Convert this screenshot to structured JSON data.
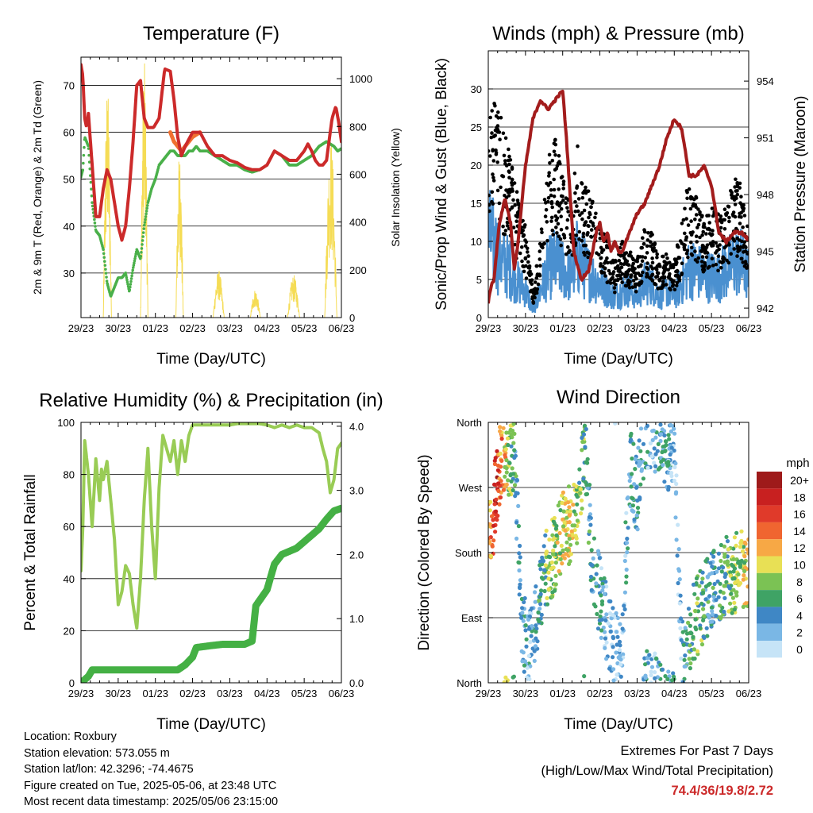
{
  "panels": {
    "temperature": {
      "title": "Temperature (F)",
      "xlabel": "Time (Day/UTC)",
      "ylabel_left": "2m & 9m T (Red, Orange) & 2m Td (Green)",
      "ylabel_right": "Solar Insolation (Yellow)"
    },
    "winds": {
      "title": "Winds (mph) & Pressure (mb)",
      "xlabel": "Time (Day/UTC)",
      "ylabel_left": "Sonic/Prop Wind & Gust (Blue, Black)",
      "ylabel_right": "Station Pressure (Maroon)"
    },
    "humidity": {
      "title": "Relative Humidity (%) & Precipitation (in)",
      "xlabel": "Time (Day/UTC)",
      "ylabel_left": "Percent & Total Rainfall"
    },
    "direction": {
      "title": "Wind Direction",
      "xlabel": "Time (Day/UTC)",
      "ylabel_left": "Direction (Colored By Speed)",
      "legend_title": "mph"
    }
  },
  "info": {
    "location": "Location: Roxbury",
    "elevation": "Station elevation: 573.055 m",
    "latlon": "Station lat/lon: 42.3296; -74.4675",
    "created": "Figure created on Tue, 2025-05-06, at 23:48 UTC",
    "recent": "Most recent data timestamp: 2025/05/06 23:15:00"
  },
  "extremes": {
    "heading": "Extremes For Past 7 Days",
    "subheading": "(High/Low/Max Wind/Total Precipitation)",
    "values": "74.4/36/19.8/2.72"
  },
  "colors": {
    "temp_2m": "#cc2a2a",
    "temp_9m": "#f07030",
    "dewpoint": "#4ab04a",
    "solar": "#f5dc55",
    "gust": "#000000",
    "wind": "#4a90d0",
    "pressure": "#a31c1c",
    "rh": "#99cc55",
    "precip": "#44b044"
  },
  "chart_data": [
    {
      "type": "line",
      "title": "Temperature (F)",
      "xlabel": "Time (Day/UTC)",
      "ylabel": "2m & 9m T (Red, Orange) & 2m Td (Green)",
      "y2label": "Solar Insolation (Yellow)",
      "x_ticks": [
        "29/23",
        "30/23",
        "01/23",
        "02/23",
        "03/23",
        "04/23",
        "05/23",
        "06/23"
      ],
      "xlim": [
        0,
        7
      ],
      "ylim": [
        20.5,
        76
      ],
      "y_ticks": [
        30,
        40,
        50,
        60,
        70
      ],
      "y2lim": [
        0,
        1090
      ],
      "y2_ticks": [
        0,
        200,
        400,
        600,
        800,
        1000
      ],
      "series": [
        {
          "name": "2m T",
          "color": "#cc2a2a",
          "x": [
            0,
            0.05,
            0.1,
            0.15,
            0.2,
            0.3,
            0.4,
            0.5,
            0.6,
            0.7,
            0.8,
            0.9,
            1.0,
            1.1,
            1.2,
            1.3,
            1.4,
            1.5,
            1.6,
            1.7,
            1.8,
            1.95,
            2.1,
            2.25,
            2.4,
            2.5,
            2.6,
            2.7,
            2.8,
            3.0,
            3.2,
            3.4,
            3.6,
            3.8,
            4.0,
            4.2,
            4.4,
            4.6,
            4.8,
            5.0,
            5.2,
            5.4,
            5.6,
            5.8,
            5.9,
            6.0,
            6.1,
            6.2,
            6.3,
            6.4,
            6.5,
            6.6,
            6.75,
            6.85,
            6.93,
            7.0
          ],
          "y": [
            74.4,
            72,
            63,
            61,
            64,
            53,
            42,
            42,
            48,
            52,
            50,
            45,
            40,
            37,
            40,
            48,
            58,
            70,
            71,
            63,
            61,
            61,
            63,
            73.5,
            73,
            67,
            59,
            55,
            57,
            60,
            60,
            57,
            55,
            55,
            54,
            53.5,
            52.5,
            52,
            52,
            53,
            56,
            55,
            54,
            54,
            55,
            56,
            57.5,
            56,
            54,
            53,
            53,
            54,
            63,
            65.5,
            62,
            58
          ]
        },
        {
          "name": "9m T",
          "color": "#f07030",
          "x": [
            2.4,
            2.5,
            2.6,
            2.7,
            2.8,
            3.0,
            3.2
          ],
          "y": [
            60,
            58,
            57,
            56,
            57,
            59,
            60
          ]
        },
        {
          "name": "2m Td",
          "color": "#4ab04a",
          "x": [
            0,
            0.05,
            0.1,
            0.2,
            0.3,
            0.4,
            0.5,
            0.6,
            0.7,
            0.8,
            1.0,
            1.1,
            1.2,
            1.3,
            1.4,
            1.5,
            1.6,
            1.7,
            1.8,
            1.9,
            2.0,
            2.1,
            2.2,
            2.3,
            2.4,
            2.5,
            2.6,
            2.7,
            2.8,
            2.9,
            3.0,
            3.1,
            3.2,
            3.3,
            3.4,
            3.6,
            3.8,
            4.0,
            4.2,
            4.4,
            4.6,
            4.8,
            5.0,
            5.2,
            5.4,
            5.6,
            5.8,
            6.0,
            6.2,
            6.4,
            6.6,
            6.8,
            6.9,
            7.0
          ],
          "y": [
            50.5,
            52,
            59,
            57,
            45,
            39,
            38,
            35,
            28,
            25,
            29,
            29,
            30,
            26,
            31,
            35,
            33,
            40,
            45,
            48,
            50,
            53,
            54,
            55,
            56,
            56,
            55,
            55,
            55,
            56,
            56,
            57,
            56,
            56,
            56,
            55,
            54,
            53,
            53,
            52,
            51.5,
            52,
            53,
            56,
            55,
            53,
            53,
            54,
            55,
            57,
            58,
            57,
            56,
            56.5
          ]
        },
        {
          "name": "Solar Insolation",
          "color": "#f5dc55",
          "axis": "y2",
          "x": [
            0.6,
            0.72,
            0.82,
            1.6,
            1.7,
            1.8,
            2.55,
            2.65,
            2.75,
            3.55,
            3.7,
            3.85,
            4.55,
            4.7,
            4.82,
            5.55,
            5.72,
            5.88,
            6.55,
            6.7,
            6.88
          ],
          "y": [
            0,
            980,
            0,
            0,
            1080,
            0,
            0,
            700,
            0,
            0,
            200,
            0,
            0,
            120,
            0,
            0,
            180,
            0,
            0,
            760,
            0
          ]
        }
      ]
    },
    {
      "type": "line",
      "title": "Winds (mph) & Pressure (mb)",
      "xlabel": "Time (Day/UTC)",
      "ylabel": "Sonic/Prop Wind & Gust (Blue, Black)",
      "y2label": "Station Pressure (Maroon)",
      "x_ticks": [
        "29/23",
        "30/23",
        "01/23",
        "02/23",
        "03/23",
        "04/23",
        "05/23",
        "06/23"
      ],
      "xlim": [
        0,
        7
      ],
      "ylim": [
        0,
        35
      ],
      "y_ticks": [
        0,
        5,
        10,
        15,
        20,
        25,
        30
      ],
      "y2lim": [
        941.5,
        955.6
      ],
      "y2_ticks": [
        942,
        945,
        948,
        951,
        954
      ],
      "series": [
        {
          "name": "Gust",
          "color": "#000000",
          "x": [
            0,
            0.2,
            0.4,
            0.6,
            0.8,
            1.0,
            1.2,
            1.4,
            1.6,
            1.8,
            2.0,
            2.2,
            2.4,
            2.6,
            2.8,
            3.0,
            3.2,
            3.4,
            3.6,
            3.8,
            4.0,
            4.2,
            4.4,
            4.6,
            4.8,
            5.0,
            5.2,
            5.4,
            5.6,
            5.8,
            6.0,
            6.2,
            6.4,
            6.6,
            6.8,
            7.0
          ],
          "y": [
            25,
            24,
            20,
            18,
            13,
            10,
            3,
            8,
            17,
            19,
            15,
            12,
            19,
            14,
            13,
            10,
            8,
            6,
            8,
            7,
            6,
            10,
            9,
            6,
            7,
            6,
            10,
            15,
            13,
            10,
            12,
            11,
            12,
            15,
            14,
            10
          ]
        },
        {
          "name": "Wind",
          "color": "#4a90d0",
          "x": [
            0,
            0.2,
            0.4,
            0.6,
            0.8,
            1.0,
            1.2,
            1.4,
            1.6,
            1.8,
            2.0,
            2.2,
            2.4,
            2.6,
            2.8,
            3.0,
            3.2,
            3.4,
            3.6,
            3.8,
            4.0,
            4.2,
            4.4,
            4.6,
            4.8,
            5.0,
            5.2,
            5.4,
            5.6,
            5.8,
            6.0,
            6.2,
            6.4,
            6.6,
            6.8,
            7.0
          ],
          "y": [
            12,
            10,
            8,
            7,
            5,
            4,
            1,
            4,
            7,
            8,
            7,
            6,
            9,
            7,
            6,
            5,
            4,
            3,
            4,
            4,
            3,
            5,
            5,
            3,
            4,
            3,
            5,
            7,
            7,
            6,
            6,
            6,
            7,
            8,
            8,
            6
          ]
        },
        {
          "name": "Station Pressure",
          "color": "#a31c1c",
          "axis": "y2",
          "x": [
            0,
            0.08,
            0.15,
            0.3,
            0.45,
            0.6,
            0.7,
            0.8,
            0.9,
            1.0,
            1.2,
            1.4,
            1.6,
            1.8,
            2.0,
            2.1,
            2.2,
            2.3,
            2.5,
            2.7,
            2.9,
            3.0,
            3.1,
            3.2,
            3.3,
            3.4,
            3.5,
            3.6,
            3.8,
            4.0,
            4.2,
            4.4,
            4.6,
            4.8,
            5.0,
            5.2,
            5.4,
            5.6,
            5.8,
            6.0,
            6.2,
            6.4,
            6.6,
            6.8,
            6.9,
            7.0
          ],
          "y": [
            942.3,
            943.2,
            943.5,
            946.5,
            947.8,
            946.5,
            944,
            945.5,
            947.5,
            949.5,
            952,
            953,
            952.5,
            953,
            953.5,
            951,
            948,
            945,
            943.5,
            944,
            946,
            946.5,
            945.5,
            946,
            945,
            945.5,
            945,
            945,
            946,
            947,
            947.5,
            948.5,
            949.5,
            951,
            952,
            951.5,
            949,
            949,
            949.5,
            948.5,
            946,
            945.5,
            946,
            946,
            945.8,
            945.6
          ]
        }
      ]
    },
    {
      "type": "line",
      "title": "Relative Humidity (%) & Precipitation (in)",
      "xlabel": "Time (Day/UTC)",
      "ylabel": "Percent & Total Rainfall",
      "x_ticks": [
        "29/23",
        "30/23",
        "01/23",
        "02/23",
        "03/23",
        "04/23",
        "05/23",
        "06/23"
      ],
      "xlim": [
        0,
        7
      ],
      "ylim": [
        0,
        100
      ],
      "y_ticks": [
        0,
        20,
        40,
        60,
        80,
        100
      ],
      "y2lim": [
        0,
        4.06
      ],
      "y2_ticks": [
        0.0,
        1.0,
        2.0,
        3.0,
        4.0
      ],
      "series": [
        {
          "name": "Relative Humidity",
          "color": "#99cc55",
          "x": [
            0,
            0.05,
            0.1,
            0.2,
            0.3,
            0.4,
            0.5,
            0.55,
            0.6,
            0.7,
            0.8,
            0.9,
            1.0,
            1.1,
            1.2,
            1.3,
            1.4,
            1.5,
            1.6,
            1.7,
            1.8,
            1.9,
            2.0,
            2.1,
            2.2,
            2.3,
            2.4,
            2.5,
            2.6,
            2.7,
            2.8,
            2.9,
            3.0,
            3.2,
            3.4,
            3.6,
            3.8,
            4.0,
            4.2,
            4.4,
            4.6,
            4.8,
            5.0,
            5.2,
            5.4,
            5.6,
            5.8,
            6.0,
            6.2,
            6.4,
            6.5,
            6.6,
            6.7,
            6.8,
            6.9,
            7.0
          ],
          "y": [
            43,
            60,
            93,
            80,
            60,
            86,
            70,
            82,
            78,
            85,
            70,
            55,
            30,
            35,
            45,
            42,
            30,
            21,
            40,
            70,
            90,
            60,
            40,
            75,
            95,
            90,
            85,
            93,
            80,
            93,
            85,
            95,
            99,
            99,
            99,
            99,
            99,
            99,
            99.5,
            99.5,
            99.5,
            99.5,
            99,
            98,
            99,
            98,
            99,
            98,
            98,
            96,
            90,
            85,
            73,
            78,
            90,
            92
          ]
        },
        {
          "name": "Total Precipitation",
          "color": "#44b044",
          "axis": "y2",
          "x": [
            0,
            0.2,
            0.3,
            1.0,
            2.0,
            2.6,
            2.8,
            3.0,
            3.1,
            3.5,
            3.8,
            4.0,
            4.4,
            4.6,
            4.7,
            5.0,
            5.2,
            5.4,
            5.6,
            5.8,
            6.0,
            6.2,
            6.4,
            6.6,
            6.8,
            7.0
          ],
          "y": [
            0,
            0.1,
            0.2,
            0.2,
            0.2,
            0.2,
            0.28,
            0.4,
            0.55,
            0.58,
            0.6,
            0.6,
            0.6,
            0.65,
            1.2,
            1.45,
            1.85,
            2.0,
            2.05,
            2.1,
            2.2,
            2.3,
            2.4,
            2.55,
            2.68,
            2.72
          ]
        }
      ]
    },
    {
      "type": "scatter",
      "title": "Wind Direction",
      "xlabel": "Time (Day/UTC)",
      "ylabel": "Direction (Colored By Speed)",
      "x_ticks": [
        "29/23",
        "30/23",
        "01/23",
        "02/23",
        "03/23",
        "04/23",
        "05/23",
        "06/23"
      ],
      "xlim": [
        0,
        7
      ],
      "y_ticks": [
        "North",
        "East",
        "South",
        "West",
        "North"
      ],
      "ylim": [
        0,
        360
      ],
      "legend": {
        "title": "mph",
        "labels": [
          "20+",
          "18",
          "16",
          "14",
          "12",
          "10",
          "8",
          "6",
          "4",
          "2",
          "0"
        ],
        "colors": [
          "#9e1a1a",
          "#c82020",
          "#e03a2a",
          "#f06530",
          "#f7a845",
          "#e8e055",
          "#7bc254",
          "#3fa365",
          "#3f87c5",
          "#7ab7e5",
          "#c6e4f7"
        ]
      },
      "x": [
        0.05,
        0.1,
        0.15,
        0.2,
        0.3,
        0.4,
        0.5,
        0.55,
        0.7,
        0.9,
        1.1,
        1.3,
        1.5,
        1.6,
        1.8,
        2.0,
        2.2,
        2.4,
        2.6,
        2.8,
        3.0,
        3.2,
        3.4,
        3.6,
        3.8,
        4.0,
        4.2,
        4.4,
        4.6,
        4.8,
        5.0,
        5.2,
        5.4,
        5.6,
        5.8,
        6.0,
        6.2,
        6.4,
        6.6,
        6.8,
        6.9
      ],
      "y": [
        200,
        210,
        240,
        270,
        300,
        310,
        320,
        300,
        320,
        80,
        40,
        90,
        150,
        160,
        180,
        210,
        220,
        230,
        330,
        160,
        120,
        80,
        50,
        60,
        300,
        260,
        350,
        350,
        340,
        320,
        330,
        40,
        70,
        90,
        110,
        130,
        140,
        150,
        150,
        160,
        150
      ],
      "speed": [
        12,
        14,
        16,
        18,
        14,
        12,
        10,
        8,
        6,
        4,
        2,
        4,
        6,
        8,
        8,
        10,
        10,
        8,
        6,
        4,
        4,
        2,
        2,
        2,
        4,
        4,
        4,
        2,
        4,
        4,
        2,
        2,
        6,
        8,
        6,
        4,
        6,
        6,
        8,
        8,
        10
      ]
    }
  ]
}
